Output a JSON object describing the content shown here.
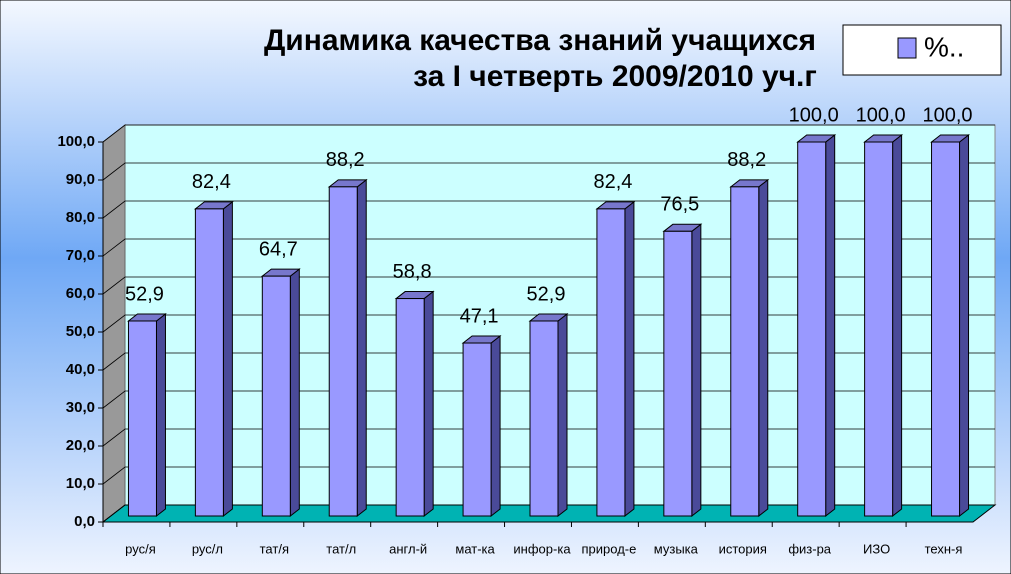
{
  "chart_data": {
    "type": "bar3d",
    "title": [
      "Динамика качества знаний учащихся",
      "за I четверть 2009/2010  уч.г"
    ],
    "categories": [
      "рус/я",
      "рус/л",
      "тат/я",
      "тат/л",
      "англ-й",
      "мат-ка",
      "инфор-ка",
      "природ-е",
      "музыка",
      "история",
      "физ-ра",
      "ИЗО",
      "техн-я"
    ],
    "series": [
      {
        "name": "%..",
        "color": "#9999ff",
        "values": [
          52.9,
          82.4,
          64.7,
          88.2,
          58.8,
          47.1,
          52.9,
          82.4,
          76.5,
          88.2,
          100,
          100,
          100
        ],
        "value_labels": [
          "52,9",
          "82,4",
          "64,7",
          "88,2",
          "58,8",
          "47,1",
          "52,9",
          "82,4",
          "76,5",
          "88,2",
          "100,0",
          "100,0",
          "100,0"
        ]
      }
    ],
    "ylim": [
      0,
      100
    ],
    "yticks": [
      {
        "value": 0,
        "label": "0,0"
      },
      {
        "value": 10,
        "label": "10,0"
      },
      {
        "value": 20,
        "label": "20,0"
      },
      {
        "value": 30,
        "label": "30,0"
      },
      {
        "value": 40,
        "label": "40,0"
      },
      {
        "value": 50,
        "label": "50,0"
      },
      {
        "value": 60,
        "label": "60,0"
      },
      {
        "value": 70,
        "label": "70,0"
      },
      {
        "value": 80,
        "label": "80,0"
      },
      {
        "value": 90,
        "label": "90,0"
      },
      {
        "value": 100,
        "label": "100,0"
      }
    ],
    "grid": true,
    "legend": "top-right"
  }
}
